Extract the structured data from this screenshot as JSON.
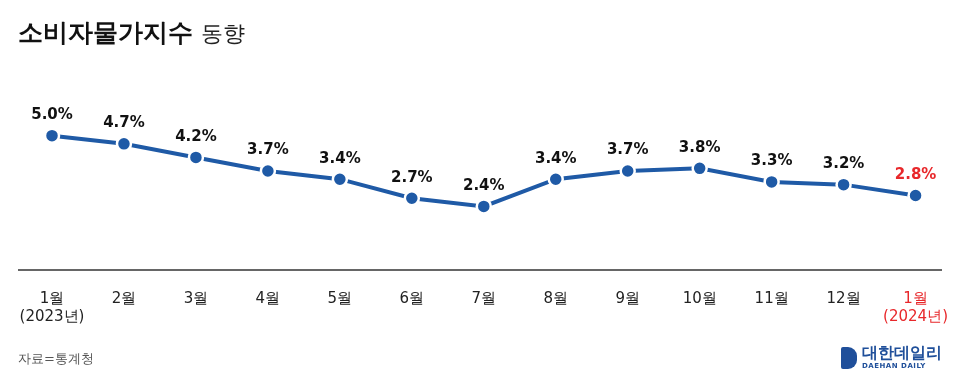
{
  "chart_data": {
    "type": "line",
    "title": "소비자물가지수",
    "subtitle": "동향",
    "categories": [
      "1월\n(2023년)",
      "2월",
      "3월",
      "4월",
      "5월",
      "6월",
      "7월",
      "8월",
      "9월",
      "10월",
      "11월",
      "12월",
      "1월\n(2024년)"
    ],
    "values": [
      5.0,
      4.7,
      4.2,
      3.7,
      3.4,
      2.7,
      2.4,
      3.4,
      3.7,
      3.8,
      3.3,
      3.2,
      2.8
    ],
    "value_labels": [
      "5.0%",
      "4.7%",
      "4.2%",
      "3.7%",
      "3.4%",
      "2.7%",
      "2.4%",
      "3.4%",
      "3.7%",
      "3.8%",
      "3.3%",
      "3.2%",
      "2.8%"
    ],
    "color": "#1f5aa6",
    "marker": "circle",
    "data_labels": true,
    "tick_labels": "x",
    "grid": false,
    "source": "자료=통계청",
    "logo": {
      "name": "대한데일리",
      "subtitle": "DAEHAN DAILY"
    }
  }
}
